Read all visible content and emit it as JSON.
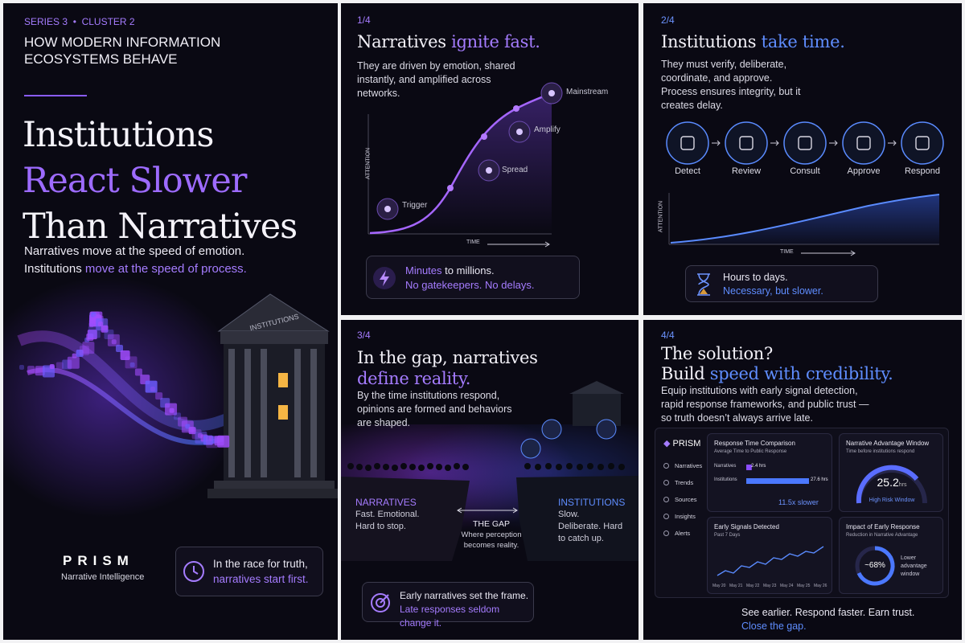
{
  "cover": {
    "series": "SERIES 3",
    "cluster": "CLUSTER 2",
    "kicker": "HOW MODERN INFORMATION ECOSYSTEMS BEHAVE",
    "title_line1": "Institutions",
    "title_line2": "React Slower",
    "title_line3": "Than Narratives",
    "subtitle_line1": "Narratives move at the speed of emotion.",
    "subtitle_line2_start": "Institutions",
    "subtitle_line2_highlight": "move at the speed of process.",
    "building_sign": "INSTITUTIONS",
    "brand": "PRISM",
    "brand_tagline": "Narrative Intelligence",
    "callout_line1": "In the race for truth,",
    "callout_line2": "narratives start first."
  },
  "panel1": {
    "label": "1/4",
    "title": "Narratives",
    "title_highlight": "ignite fast.",
    "body": "They are driven by emotion, shared instantly, and amplified across networks.",
    "stages": [
      "Trigger",
      "Spread",
      "Amplify",
      "Mainstream"
    ],
    "y_axis": "ATTENTION",
    "x_axis": "TIME",
    "callout_highlight": "Minutes",
    "callout_rest": "to millions.",
    "callout_line2": "No gatekeepers. No delays."
  },
  "panel2": {
    "label": "2/4",
    "title": "Institutions",
    "title_highlight": "take time.",
    "body": "They must verify, deliberate, coordinate, and approve. Process ensures integrity, but it creates delay.",
    "steps": [
      "Detect",
      "Review",
      "Consult",
      "Approve",
      "Respond"
    ],
    "y_axis": "ATTENTION",
    "x_axis": "TIME",
    "callout_line1": "Hours to days.",
    "callout_line2": "Necessary, but slower."
  },
  "panel3": {
    "label": "3/4",
    "title": "In the gap, narratives",
    "title_highlight": "define reality.",
    "body": "By the time institutions respond, opinions are formed and behaviors are shaped.",
    "left_head": "NARRATIVES",
    "left_body": "Fast. Emotional. Hard to stop.",
    "gap_head": "THE GAP",
    "gap_body": "Where perception becomes reality.",
    "right_head": "INSTITUTIONS",
    "right_body": "Slow. Deliberate. Hard to catch up.",
    "callout_line1": "Early narratives set the frame.",
    "callout_line2": "Late responses seldom change it."
  },
  "panel4": {
    "label": "4/4",
    "title_line1": "The solution?",
    "title_line2": "Build",
    "title_highlight": "speed with credibility.",
    "body": "Equip institutions with early signal detection, rapid response frameworks, and public trust — so truth doesn’t always arrive late.",
    "dashboard": {
      "brand": "PRISM",
      "nav": [
        "Narratives",
        "Trends",
        "Sources",
        "Insights",
        "Alerts"
      ],
      "response": {
        "title": "Response Time Comparison",
        "subtitle": "Average Time to Public Response",
        "categories": [
          "Narratives",
          "Institutions"
        ],
        "values": [
          2.4,
          27.6
        ],
        "value_labels": [
          "2.4 hrs",
          "27.6 hrs"
        ],
        "summary": "11.5x slower"
      },
      "window": {
        "title": "Narrative Advantage Window",
        "subtitle": "Time before institutions respond",
        "value": "25.2",
        "unit": "hrs",
        "caption": "High Risk Window"
      },
      "signals": {
        "title": "Early Signals Detected",
        "subtitle": "Past 7 Days",
        "dates": [
          "May 20",
          "May 21",
          "May 22",
          "May 23",
          "May 24",
          "May 25",
          "May 26"
        ]
      },
      "impact": {
        "title": "Impact of Early Response",
        "subtitle": "Reduction in Narrative Advantage",
        "value": "~68%",
        "caption": "Lower advantage window"
      }
    },
    "footer_line1": "See earlier. Respond faster. Earn trust.",
    "footer_line2": "Close the gap."
  }
}
